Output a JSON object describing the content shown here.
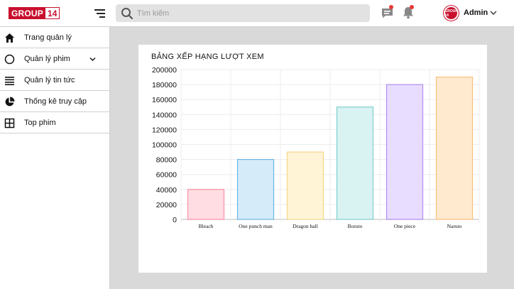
{
  "header": {
    "logo_part1": "GROUP",
    "logo_part2": "14",
    "search_placeholder": "Tìm kiếm",
    "avatar_text": "GROUP 14",
    "user_name": "Admin"
  },
  "sidebar": {
    "items": [
      {
        "label": "Trang quản lý",
        "icon": "home-icon"
      },
      {
        "label": "Quản lý phim",
        "icon": "circle-icon",
        "has_dropdown": true
      },
      {
        "label": "Quản lý tin tức",
        "icon": "list-icon"
      },
      {
        "label": "Thống kê truy cập",
        "icon": "pie-chart-icon"
      },
      {
        "label": "Top phim",
        "icon": "grid-icon"
      }
    ]
  },
  "colors": {
    "brand": "#c8102e",
    "notification_dot": "#e53935"
  },
  "chart_data": {
    "type": "bar",
    "title": "BẢNG XẾP HẠNG LƯỢT XEM",
    "xlabel": "",
    "ylabel": "",
    "categories": [
      "Bleach",
      "One punch man",
      "Dragon ball",
      "Boruto",
      "One piece",
      "Naruto"
    ],
    "values": [
      40000,
      80000,
      90000,
      150000,
      180000,
      190000
    ],
    "ylim": [
      0,
      200000
    ],
    "yticks": [
      0,
      20000,
      40000,
      60000,
      80000,
      100000,
      120000,
      140000,
      160000,
      180000,
      200000
    ],
    "grid": true,
    "bar_colors": [
      {
        "fill": "#ffdde3",
        "stroke": "#ff8fa3"
      },
      {
        "fill": "#d5ebfa",
        "stroke": "#6cb4e6"
      },
      {
        "fill": "#fff4d6",
        "stroke": "#f5d58a"
      },
      {
        "fill": "#d9f2f2",
        "stroke": "#7fcfcf"
      },
      {
        "fill": "#e8dcff",
        "stroke": "#b18cf0"
      },
      {
        "fill": "#ffead0",
        "stroke": "#f8bf7d"
      }
    ]
  }
}
